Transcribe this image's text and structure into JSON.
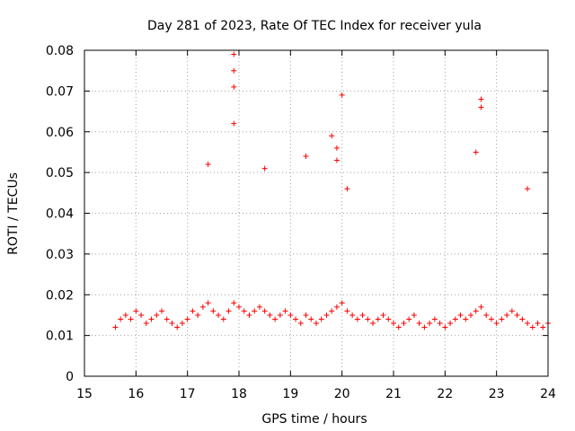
{
  "chart_data": {
    "type": "scatter",
    "title": "Day 281 of 2023, Rate Of TEC Index for receiver yula",
    "xlabel": "GPS time / hours",
    "ylabel": "ROTI / TECUs",
    "xlim": [
      15,
      24
    ],
    "ylim": [
      0,
      0.08
    ],
    "xticks": [
      15,
      16,
      17,
      18,
      19,
      20,
      21,
      22,
      23,
      24
    ],
    "yticks": [
      0,
      0.01,
      0.02,
      0.03,
      0.04,
      0.05,
      0.06,
      0.07,
      0.08
    ],
    "xtick_labels": [
      "15",
      "16",
      "17",
      "18",
      "19",
      "20",
      "21",
      "22",
      "23",
      "24"
    ],
    "ytick_labels": [
      "0",
      "0.01",
      "0.02",
      "0.03",
      "0.04",
      "0.05",
      "0.06",
      "0.07",
      "0.08"
    ],
    "grid": true,
    "marker": "plus",
    "marker_color": "#ff0000",
    "series": [
      {
        "name": "ROTI",
        "x": [
          15.6,
          15.7,
          15.8,
          15.9,
          16.0,
          16.1,
          16.2,
          16.3,
          16.4,
          16.5,
          16.6,
          16.7,
          16.8,
          16.9,
          17.0,
          17.1,
          17.2,
          17.3,
          17.4,
          17.5,
          17.6,
          17.7,
          17.8,
          17.9,
          18.0,
          18.1,
          18.2,
          18.3,
          18.4,
          18.5,
          18.6,
          18.7,
          18.8,
          18.9,
          19.0,
          19.1,
          19.2,
          19.3,
          19.4,
          19.5,
          19.6,
          19.7,
          19.8,
          19.9,
          20.0,
          20.1,
          20.2,
          20.3,
          20.4,
          20.5,
          20.6,
          20.7,
          20.8,
          20.9,
          21.0,
          21.1,
          21.2,
          21.3,
          21.4,
          21.5,
          21.6,
          21.7,
          21.8,
          21.9,
          22.0,
          22.1,
          22.2,
          22.3,
          22.4,
          22.5,
          22.6,
          22.7,
          22.8,
          22.9,
          23.0,
          23.1,
          23.2,
          23.3,
          23.4,
          23.5,
          23.6,
          23.7,
          23.8,
          23.9,
          24.0,
          17.4,
          17.9,
          17.9,
          17.9,
          17.9,
          18.5,
          19.3,
          19.8,
          19.9,
          19.9,
          20.0,
          20.1,
          22.6,
          22.7,
          22.7,
          23.6
        ],
        "y": [
          0.012,
          0.014,
          0.015,
          0.014,
          0.016,
          0.015,
          0.013,
          0.014,
          0.015,
          0.016,
          0.014,
          0.013,
          0.012,
          0.013,
          0.014,
          0.016,
          0.015,
          0.017,
          0.018,
          0.016,
          0.015,
          0.014,
          0.016,
          0.018,
          0.017,
          0.016,
          0.015,
          0.016,
          0.017,
          0.016,
          0.015,
          0.014,
          0.015,
          0.016,
          0.015,
          0.014,
          0.013,
          0.015,
          0.014,
          0.013,
          0.014,
          0.015,
          0.016,
          0.017,
          0.018,
          0.016,
          0.015,
          0.014,
          0.015,
          0.014,
          0.013,
          0.014,
          0.015,
          0.014,
          0.013,
          0.012,
          0.013,
          0.014,
          0.015,
          0.013,
          0.012,
          0.013,
          0.014,
          0.013,
          0.012,
          0.013,
          0.014,
          0.015,
          0.014,
          0.015,
          0.016,
          0.017,
          0.015,
          0.014,
          0.013,
          0.014,
          0.015,
          0.016,
          0.015,
          0.014,
          0.013,
          0.012,
          0.013,
          0.012,
          0.013,
          0.052,
          0.079,
          0.075,
          0.071,
          0.062,
          0.051,
          0.054,
          0.059,
          0.056,
          0.053,
          0.069,
          0.046,
          0.055,
          0.068,
          0.066,
          0.046
        ]
      }
    ]
  }
}
